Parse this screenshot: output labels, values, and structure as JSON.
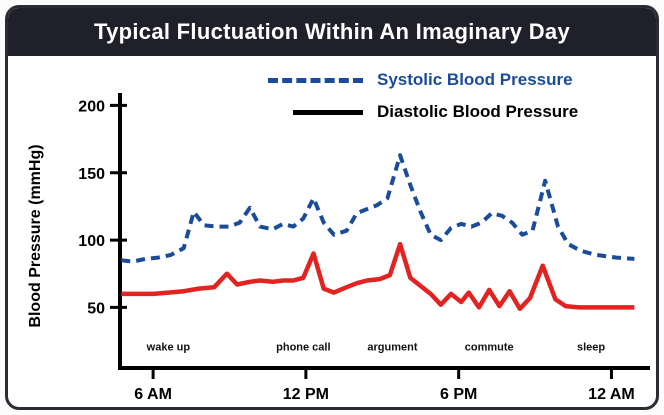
{
  "header": {
    "title": "Typical Fluctuation Within An Imaginary Day"
  },
  "legend": {
    "systolic_label": "Systolic Blood Pressure",
    "diastolic_label": "Diastolic Blood Pressure"
  },
  "colors": {
    "header_bg": "#20202a",
    "frame_border": "#2b2b33",
    "systolic_blue": "#1a4c9a",
    "diastolic_red": "#e32222",
    "legend_diastolic_line": "#000000",
    "axis_black": "#000000"
  },
  "chart_data": {
    "type": "line",
    "title": "Typical Fluctuation Within An Imaginary Day",
    "xlabel": "",
    "ylabel": "Blood Pressure (mmHg)",
    "xlim": [
      4.7,
      25.2
    ],
    "ylim": [
      5,
      207
    ],
    "grid": false,
    "legend_position": "top",
    "x_ticks": [
      {
        "value": 6,
        "label": "6 AM"
      },
      {
        "value": 12,
        "label": "12 PM"
      },
      {
        "value": 18,
        "label": "6 PM"
      },
      {
        "value": 24,
        "label": "12 AM"
      }
    ],
    "y_ticks": [
      {
        "value": 50,
        "label": "50"
      },
      {
        "value": 100,
        "label": "100"
      },
      {
        "value": 150,
        "label": "150"
      },
      {
        "value": 200,
        "label": "200"
      }
    ],
    "annotations": [
      {
        "x": 6.6,
        "y": 18,
        "label": "wake up"
      },
      {
        "x": 11.9,
        "y": 18,
        "label": "phone call"
      },
      {
        "x": 15.4,
        "y": 18,
        "label": "argument"
      },
      {
        "x": 19.2,
        "y": 18,
        "label": "commute"
      },
      {
        "x": 23.2,
        "y": 18,
        "label": "sleep"
      }
    ],
    "series": [
      {
        "name": "Systolic Blood Pressure",
        "data_name": "systolic-series-line",
        "color": "#1a4c9a",
        "style": "dashed",
        "width": 4,
        "points": [
          [
            4.75,
            85
          ],
          [
            5.2,
            84
          ],
          [
            5.7,
            86
          ],
          [
            6.2,
            87
          ],
          [
            6.7,
            89
          ],
          [
            7.2,
            94
          ],
          [
            7.6,
            121
          ],
          [
            8.0,
            111
          ],
          [
            8.5,
            110
          ],
          [
            9.0,
            110
          ],
          [
            9.4,
            113
          ],
          [
            9.8,
            124
          ],
          [
            10.2,
            110
          ],
          [
            10.7,
            108
          ],
          [
            11.1,
            112
          ],
          [
            11.5,
            110
          ],
          [
            11.9,
            116
          ],
          [
            12.3,
            131
          ],
          [
            12.7,
            113
          ],
          [
            13.1,
            104
          ],
          [
            13.6,
            107
          ],
          [
            14.0,
            120
          ],
          [
            14.4,
            123
          ],
          [
            14.8,
            126
          ],
          [
            15.2,
            131
          ],
          [
            15.7,
            163
          ],
          [
            16.1,
            141
          ],
          [
            16.5,
            121
          ],
          [
            16.9,
            104
          ],
          [
            17.3,
            100
          ],
          [
            17.7,
            109
          ],
          [
            18.1,
            112
          ],
          [
            18.5,
            110
          ],
          [
            18.9,
            113
          ],
          [
            19.3,
            120
          ],
          [
            19.7,
            118
          ],
          [
            20.1,
            113
          ],
          [
            20.5,
            104
          ],
          [
            20.9,
            107
          ],
          [
            21.4,
            144
          ],
          [
            21.9,
            110
          ],
          [
            22.3,
            97
          ],
          [
            22.8,
            92
          ],
          [
            23.4,
            89
          ],
          [
            24.2,
            87
          ],
          [
            24.9,
            86
          ]
        ]
      },
      {
        "name": "Diastolic Blood Pressure",
        "data_name": "diastolic-series-line",
        "color": "#e32222",
        "style": "solid",
        "width": 4.5,
        "points": [
          [
            4.75,
            60
          ],
          [
            5.4,
            60
          ],
          [
            6.0,
            60
          ],
          [
            6.6,
            61
          ],
          [
            7.2,
            62
          ],
          [
            7.8,
            64
          ],
          [
            8.4,
            65
          ],
          [
            8.9,
            75
          ],
          [
            9.3,
            67
          ],
          [
            9.8,
            69
          ],
          [
            10.2,
            70
          ],
          [
            10.7,
            69
          ],
          [
            11.1,
            70
          ],
          [
            11.5,
            70
          ],
          [
            11.9,
            72
          ],
          [
            12.3,
            90
          ],
          [
            12.7,
            64
          ],
          [
            13.1,
            61
          ],
          [
            13.6,
            65
          ],
          [
            14.0,
            68
          ],
          [
            14.4,
            70
          ],
          [
            14.9,
            71
          ],
          [
            15.3,
            74
          ],
          [
            15.7,
            97
          ],
          [
            16.1,
            72
          ],
          [
            16.5,
            66
          ],
          [
            16.9,
            60
          ],
          [
            17.3,
            52
          ],
          [
            17.7,
            60
          ],
          [
            18.1,
            54
          ],
          [
            18.4,
            61
          ],
          [
            18.8,
            50
          ],
          [
            19.2,
            63
          ],
          [
            19.6,
            51
          ],
          [
            20.0,
            62
          ],
          [
            20.4,
            49
          ],
          [
            20.8,
            57
          ],
          [
            21.3,
            81
          ],
          [
            21.8,
            56
          ],
          [
            22.2,
            51
          ],
          [
            22.7,
            50
          ],
          [
            23.3,
            50
          ],
          [
            24.2,
            50
          ],
          [
            24.9,
            50
          ]
        ]
      }
    ]
  }
}
